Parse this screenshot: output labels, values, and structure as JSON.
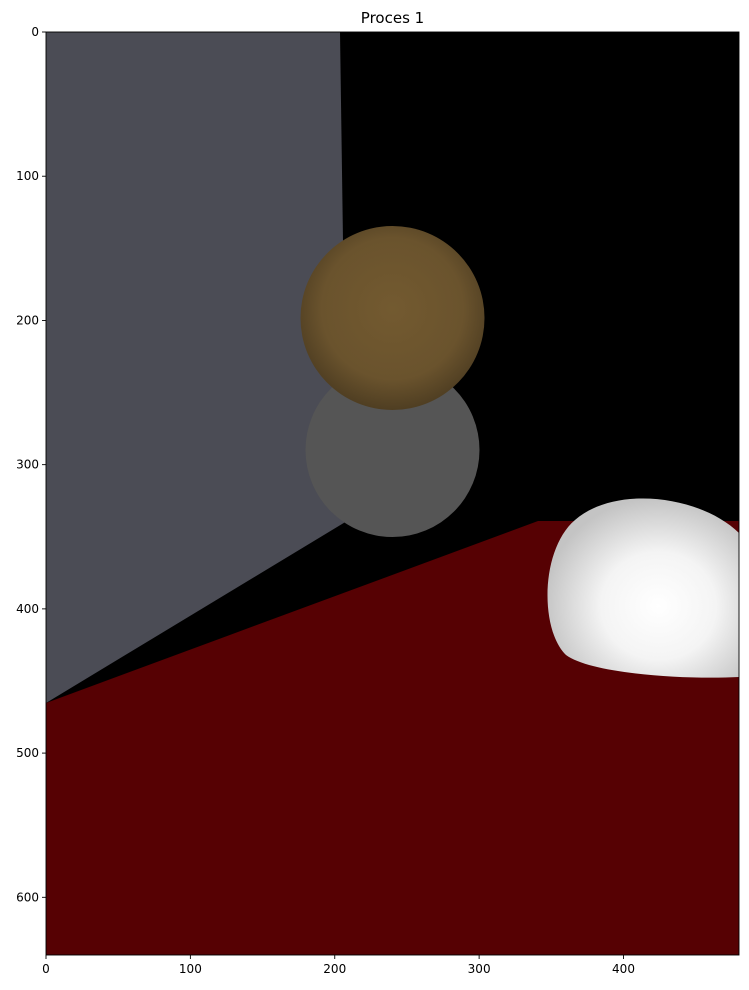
{
  "title": "Proces 1",
  "image": {
    "width": 480,
    "height": 640,
    "description_colors": {
      "wall": "#4b4c55",
      "background": "#000000",
      "floor": "#560103",
      "brown_sphere": "#735a30",
      "gray_sphere": "#555555",
      "white_sphere": "#ffffff"
    }
  },
  "axes": {
    "x_ticks": [
      {
        "value": 0,
        "label": "0"
      },
      {
        "value": 100,
        "label": "100"
      },
      {
        "value": 200,
        "label": "200"
      },
      {
        "value": 300,
        "label": "300"
      },
      {
        "value": 400,
        "label": "400"
      }
    ],
    "y_ticks": [
      {
        "value": 0,
        "label": "0"
      },
      {
        "value": 100,
        "label": "100"
      },
      {
        "value": 200,
        "label": "200"
      },
      {
        "value": 300,
        "label": "300"
      },
      {
        "value": 400,
        "label": "400"
      },
      {
        "value": 500,
        "label": "500"
      },
      {
        "value": 600,
        "label": "600"
      }
    ]
  }
}
